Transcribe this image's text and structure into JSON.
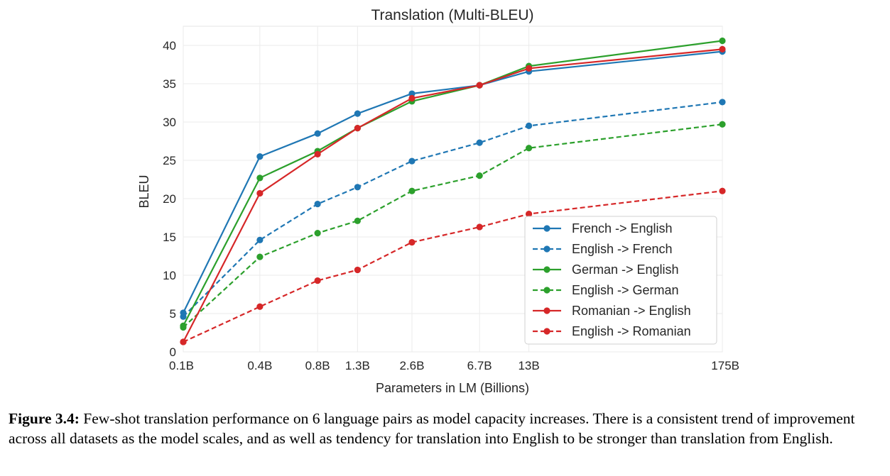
{
  "chart_data": {
    "type": "line",
    "title": "Translation (Multi-BLEU)",
    "xlabel": "Parameters in LM (Billions)",
    "ylabel": "BLEU",
    "x_scale": "log",
    "categories": [
      "0.1B",
      "0.4B",
      "0.8B",
      "1.3B",
      "2.6B",
      "6.7B",
      "13B",
      "175B"
    ],
    "x": [
      0.125,
      0.35,
      0.76,
      1.3,
      2.7,
      6.7,
      13,
      175
    ],
    "yticks": [
      "0",
      "5",
      "10",
      "15",
      "20",
      "25",
      "30",
      "35",
      "40"
    ],
    "ylim": [
      0,
      42.5
    ],
    "grid": true,
    "legend_position": "lower-right",
    "series": [
      {
        "name": "French -> English",
        "color": "#1f77b4",
        "style": "solid",
        "values": [
          5.1,
          25.5,
          28.5,
          31.1,
          33.7,
          34.8,
          36.6,
          39.2
        ]
      },
      {
        "name": "English -> French",
        "color": "#1f77b4",
        "style": "dashed",
        "values": [
          4.6,
          14.6,
          19.3,
          21.5,
          24.9,
          27.3,
          29.5,
          32.6
        ]
      },
      {
        "name": "German -> English",
        "color": "#2ca02c",
        "style": "solid",
        "values": [
          3.4,
          22.7,
          26.2,
          29.2,
          32.7,
          34.8,
          37.3,
          40.6
        ]
      },
      {
        "name": "English -> German",
        "color": "#2ca02c",
        "style": "dashed",
        "values": [
          3.2,
          12.4,
          15.5,
          17.1,
          21.0,
          23.0,
          26.6,
          29.7
        ]
      },
      {
        "name": "Romanian -> English",
        "color": "#d62728",
        "style": "solid",
        "values": [
          1.3,
          20.7,
          25.8,
          29.2,
          33.1,
          34.8,
          37.0,
          39.5
        ]
      },
      {
        "name": "English -> Romanian",
        "color": "#d62728",
        "style": "dashed",
        "values": [
          1.3,
          5.9,
          9.3,
          10.7,
          14.3,
          16.3,
          18.0,
          21.0
        ]
      }
    ]
  },
  "caption": {
    "label": "Figure 3.4:",
    "text": "Few-shot translation performance on 6 language pairs as model capacity increases. There is a consistent trend of improvement across all datasets as the model scales, and as well as tendency for translation into English to be stronger than translation from English."
  }
}
